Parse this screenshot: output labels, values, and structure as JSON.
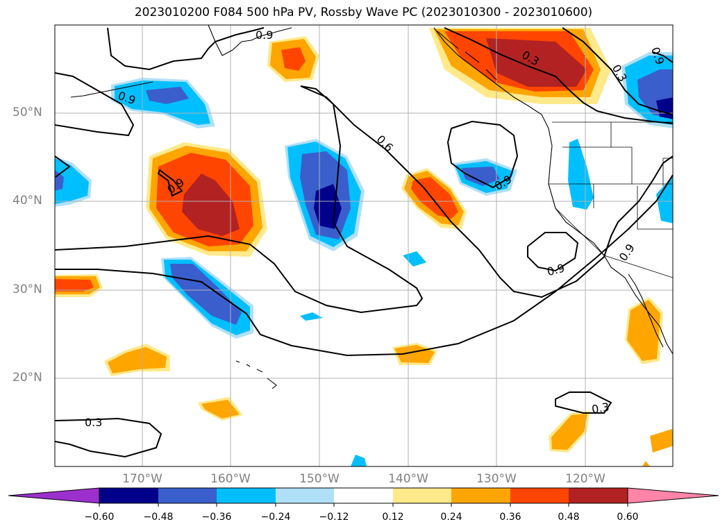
{
  "title": "2023010200 F084 500 hPa PV, Rossby Wave PC (2023010300 - 2023010600)",
  "lat_labels": [
    "50°N",
    "40°N",
    "30°N",
    "20°N"
  ],
  "lon_labels": [
    "170°W",
    "160°W",
    "150°W",
    "140°W",
    "130°W",
    "120°W"
  ],
  "contour_labels": {
    "a": "0.9",
    "b": "0.9",
    "c": "0.9",
    "d": "0.6",
    "e": "0.9",
    "f": "0.9",
    "g": "0.9",
    "h": "0.3",
    "i": "0.3",
    "j": "0.3",
    "k": "0.3",
    "l": "0.9"
  },
  "colorbar": {
    "ticks": [
      "−0.60",
      "−0.48",
      "−0.36",
      "−0.24",
      "−0.12",
      "0.12",
      "0.24",
      "0.36",
      "0.48",
      "0.60"
    ],
    "colors": {
      "under": "#9b30cc",
      "n060": "#00008b",
      "n048": "#3a5fcd",
      "n036": "#00bfff",
      "n024": "#b0e0f8",
      "zero": "#ffffff",
      "p012": "#ffe98a",
      "p024": "#ffa500",
      "p036": "#ff4500",
      "p048": "#b22222",
      "over": "#ff85a8"
    }
  }
}
